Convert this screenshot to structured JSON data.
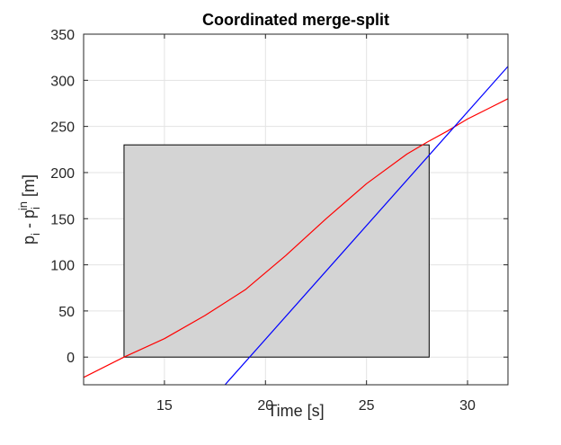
{
  "chart_data": {
    "type": "line",
    "title": "Coordinated merge-split",
    "xlabel": "Time [s]",
    "ylabel": {
      "base1": "p",
      "sub1": "i",
      "mid": " - p",
      "sub2": "i",
      "sup2": "in",
      "unit": " [m]"
    },
    "xlim": [
      11,
      32
    ],
    "ylim": [
      -30,
      350
    ],
    "xticks": [
      15,
      20,
      25,
      30
    ],
    "yticks": [
      0,
      50,
      100,
      150,
      200,
      250,
      300,
      350
    ],
    "grid": true,
    "region": {
      "x": [
        13,
        28.1
      ],
      "y": [
        0,
        230
      ],
      "color": "#d4d4d4"
    },
    "series": [
      {
        "color": "#ff0000",
        "x": [
          11,
          13,
          15,
          17,
          19,
          21,
          23,
          25,
          27,
          28,
          29,
          30,
          31,
          32
        ],
        "y": [
          -22,
          0,
          20,
          45,
          73,
          110,
          150,
          188,
          220,
          233,
          245,
          258,
          269,
          280
        ]
      },
      {
        "color": "#0000ff",
        "x": [
          18,
          32
        ],
        "y": [
          -30,
          315
        ]
      }
    ]
  }
}
